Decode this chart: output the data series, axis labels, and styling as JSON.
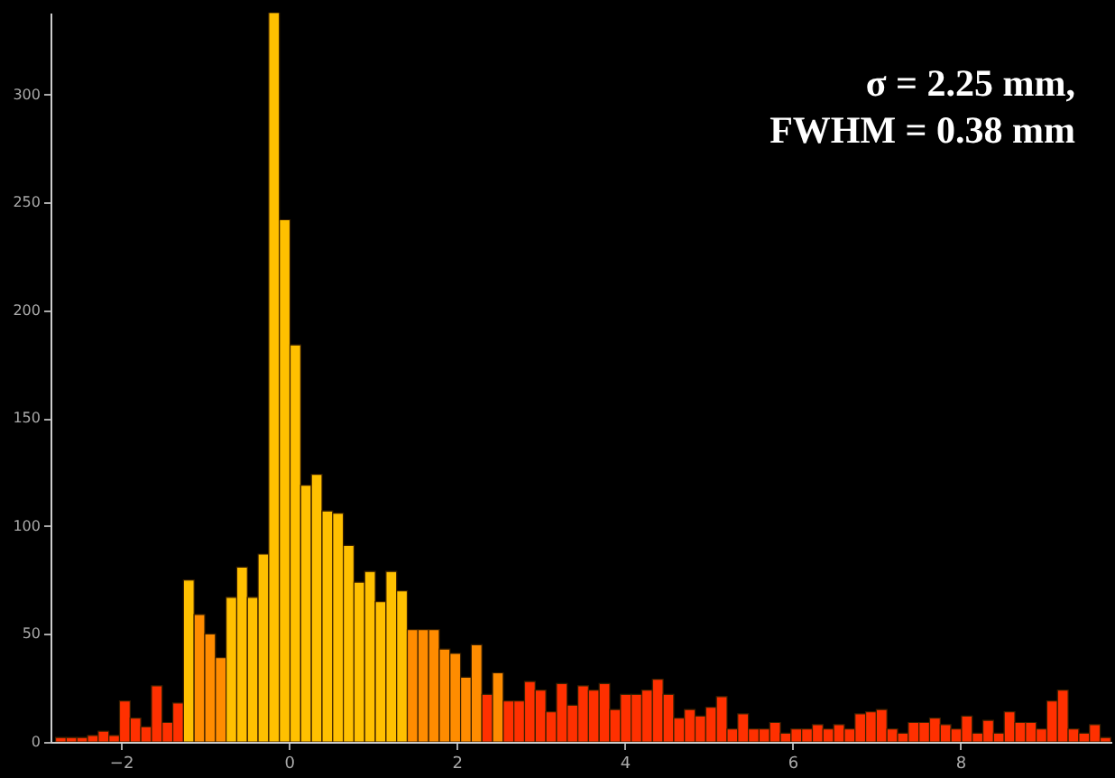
{
  "chart_data": {
    "type": "histogram",
    "bins": [
      -2.78,
      -2.653,
      -2.526,
      -2.399,
      -2.272,
      -2.145,
      -2.018,
      -1.891,
      -1.764,
      -1.637,
      -1.51,
      -1.383,
      -1.256,
      -1.129,
      -1.002,
      -0.875,
      -0.748,
      -0.621,
      -0.494,
      -0.367,
      -0.24,
      -0.113,
      0.014,
      0.141,
      0.268,
      0.395,
      0.522,
      0.649,
      0.776,
      0.903,
      1.03,
      1.157,
      1.284,
      1.411,
      1.538,
      1.665,
      1.792,
      1.919,
      2.046,
      2.173,
      2.3,
      2.427,
      2.554,
      2.681,
      2.808,
      2.935,
      3.062,
      3.189,
      3.316,
      3.443,
      3.57,
      3.697,
      3.824,
      3.951,
      4.078,
      4.205,
      4.332,
      4.459,
      4.586,
      4.713,
      4.84,
      4.967,
      5.094,
      5.221,
      5.348,
      5.475,
      5.602,
      5.729,
      5.856,
      5.983,
      6.11,
      6.237,
      6.364,
      6.491,
      6.618,
      6.745,
      6.872,
      6.999,
      7.126,
      7.253,
      7.38,
      7.507,
      7.634,
      7.761,
      7.888,
      8.015,
      8.142,
      8.269,
      8.396,
      8.523,
      8.65,
      8.777,
      8.904,
      9.031,
      9.158,
      9.285,
      9.412,
      9.539,
      9.666,
      9.793
    ],
    "values": [
      2,
      2,
      2,
      3,
      5,
      3,
      19,
      11,
      7,
      26,
      9,
      18,
      75,
      59,
      50,
      39,
      67,
      81,
      67,
      87,
      338,
      242,
      184,
      119,
      124,
      107,
      106,
      91,
      74,
      79,
      65,
      79,
      70,
      52,
      52,
      52,
      43,
      41,
      30,
      45,
      22,
      32,
      19,
      19,
      28,
      24,
      14,
      27,
      17,
      26,
      24,
      27,
      15,
      22,
      22,
      24,
      29,
      22,
      11,
      15,
      12,
      16,
      21,
      6,
      13,
      6,
      6,
      9,
      4,
      6,
      6,
      8,
      6,
      8,
      6,
      13,
      14,
      15,
      6,
      4,
      9,
      9,
      11,
      8,
      6,
      12,
      4,
      10,
      4,
      14,
      9,
      9,
      6,
      19,
      24,
      6,
      4,
      8,
      2
    ],
    "colors": [
      "#ff3000",
      "#ff3000",
      "#ff3000",
      "#ff3000",
      "#ff3000",
      "#ff3000",
      "#ff3000",
      "#ff3000",
      "#ff3000",
      "#ff3000",
      "#ff3000",
      "#ff3000",
      "#ffc000",
      "#ff8c00",
      "#ff8c00",
      "#ff8c00",
      "#ffc000",
      "#ffc000",
      "#ffc000",
      "#ffc000",
      "#ffc000",
      "#ffc000",
      "#ffc000",
      "#ffc000",
      "#ffc000",
      "#ffc000",
      "#ffc000",
      "#ffc000",
      "#ffc000",
      "#ffc000",
      "#ffc000",
      "#ffc000",
      "#ffc000",
      "#ff8c00",
      "#ff8c00",
      "#ff8c00",
      "#ff8c00",
      "#ff8c00",
      "#ff8c00",
      "#ff8c00",
      "#ff3000",
      "#ff8c00",
      "#ff3000",
      "#ff3000",
      "#ff3000",
      "#ff3000",
      "#ff3000",
      "#ff3000",
      "#ff3000",
      "#ff3000",
      "#ff3000",
      "#ff3000",
      "#ff3000",
      "#ff3000",
      "#ff3000",
      "#ff3000",
      "#ff3000",
      "#ff3000",
      "#ff3000",
      "#ff3000",
      "#ff3000",
      "#ff3000",
      "#ff3000",
      "#ff3000",
      "#ff3000",
      "#ff3000",
      "#ff3000",
      "#ff3000",
      "#ff3000",
      "#ff3000",
      "#ff3000",
      "#ff3000",
      "#ff3000",
      "#ff3000",
      "#ff3000",
      "#ff3000",
      "#ff3000",
      "#ff3000",
      "#ff3000",
      "#ff3000",
      "#ff3000",
      "#ff3000",
      "#ff3000",
      "#ff3000",
      "#ff3000",
      "#ff3000",
      "#ff3000",
      "#ff3000",
      "#ff3000",
      "#ff3000",
      "#ff3000",
      "#ff3000",
      "#ff3000",
      "#ff3000",
      "#ff3000",
      "#ff3000",
      "#ff3000",
      "#ff3000",
      "#ff3000"
    ],
    "xlim": [
      -2.84,
      9.8
    ],
    "xticks": [
      -2,
      0,
      2,
      4,
      6,
      8
    ],
    "ylim": [
      0,
      338
    ],
    "yticks": [
      0,
      50,
      100,
      150,
      200,
      250,
      300
    ],
    "grid": false,
    "annotations": [
      "σ = 2.25 mm,",
      "FWHM = 0.38 mm"
    ]
  }
}
